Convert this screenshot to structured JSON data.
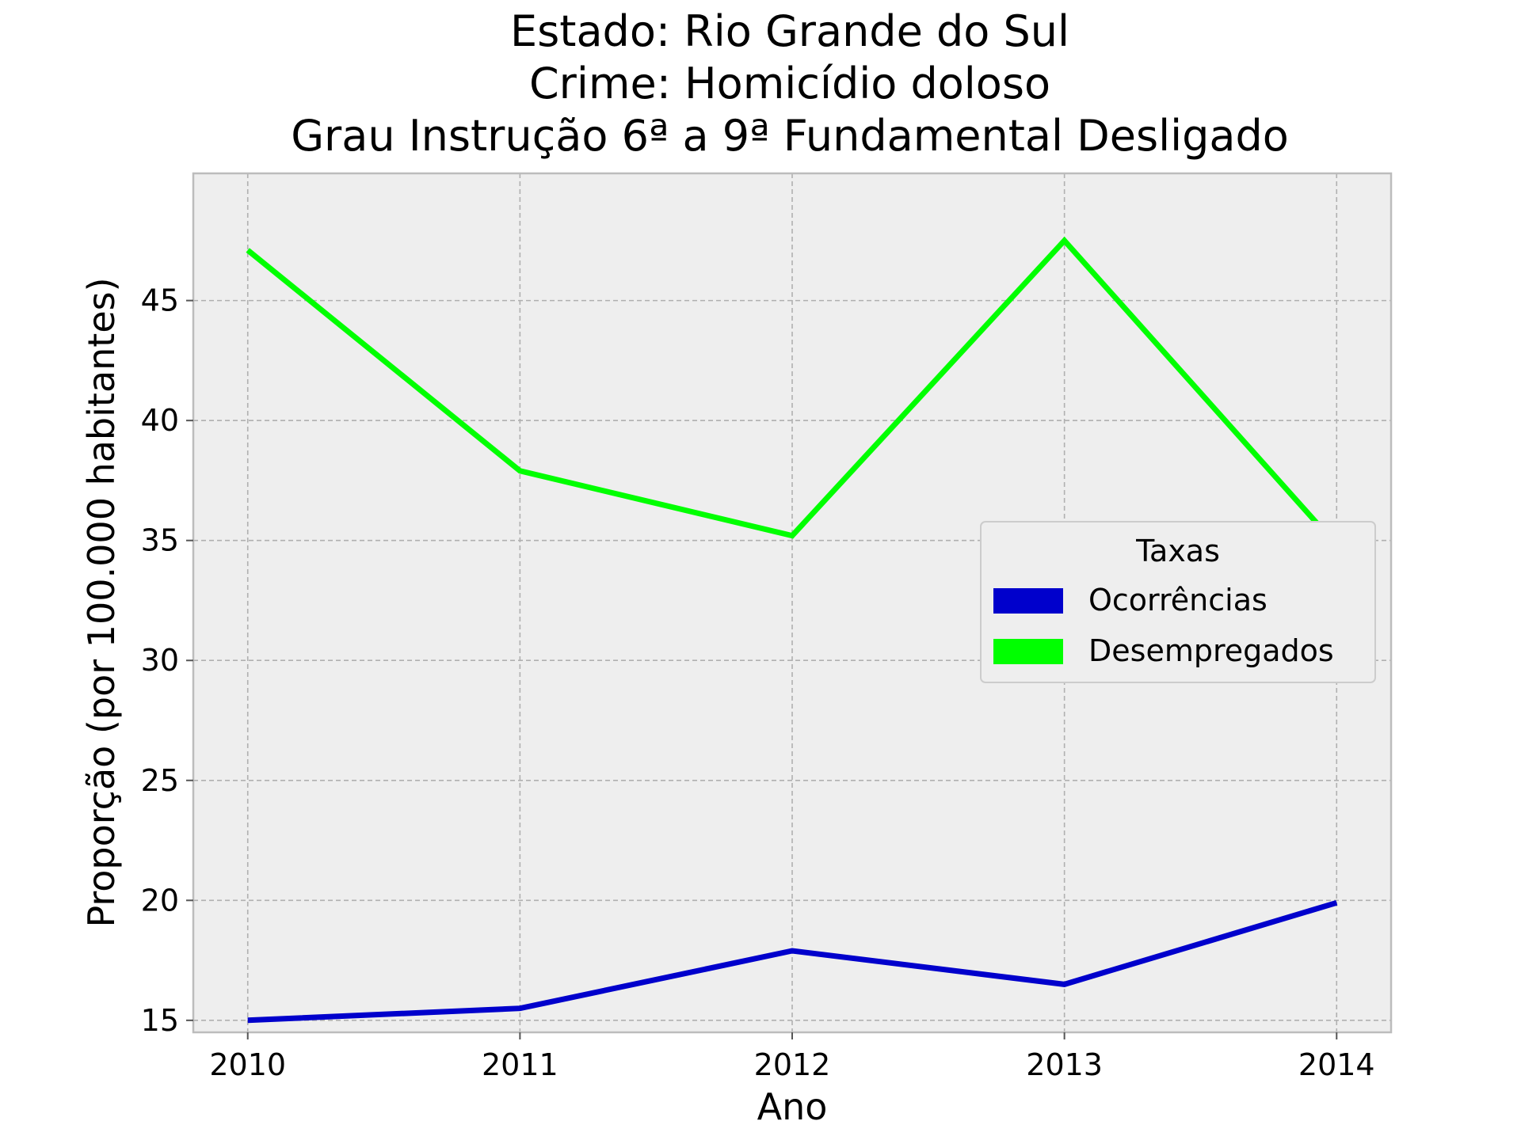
{
  "chart_data": {
    "type": "line",
    "title_lines": [
      "Estado: Rio Grande do Sul",
      "Crime: Homicídio doloso",
      "Grau Instrução  6ª a 9ª Fundamental   Desligado"
    ],
    "xlabel": "Ano",
    "ylabel": "Proporção (por 100.000 habitantes)",
    "x": [
      2010,
      2011,
      2012,
      2013,
      2014
    ],
    "x_tick_labels": [
      "2010",
      "2011",
      "2012",
      "2013",
      "2014"
    ],
    "y_ticks": [
      15,
      20,
      25,
      30,
      35,
      40,
      45
    ],
    "y_tick_labels": [
      "15",
      "20",
      "25",
      "30",
      "35",
      "40",
      "45"
    ],
    "xlim": [
      2009.8,
      2014.2
    ],
    "ylim": [
      14.5,
      50.3
    ],
    "grid": true,
    "legend": {
      "title": "Taxas",
      "placement": "center-right"
    },
    "series": [
      {
        "name": "Ocorrências",
        "color": "#0000cc",
        "values": [
          15.0,
          15.5,
          17.9,
          16.5,
          19.9
        ]
      },
      {
        "name": "Desempregados",
        "color": "#00ff00",
        "values": [
          47.1,
          37.9,
          35.2,
          47.5,
          34.8
        ]
      }
    ]
  }
}
